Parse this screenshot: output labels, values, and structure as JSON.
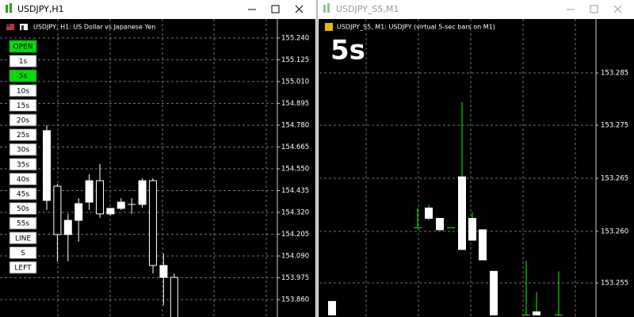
{
  "windows": [
    {
      "title": "USDJPY,H1",
      "info": "USDJPY, H1:  US Dollar vs Japanese Yen",
      "ylim": [
        153.768,
        155.34
      ],
      "price_ticks": [
        {
          "value": 155.24,
          "label": "155.240"
        },
        {
          "value": 155.125,
          "label": "155.125"
        },
        {
          "value": 155.01,
          "label": "155.010"
        },
        {
          "value": 154.895,
          "label": "154.895"
        },
        {
          "value": 154.78,
          "label": "154.780"
        },
        {
          "value": 154.665,
          "label": "154.665"
        },
        {
          "value": 154.55,
          "label": "154.550"
        },
        {
          "value": 154.435,
          "label": "154.435"
        },
        {
          "value": 154.32,
          "label": "154.320"
        },
        {
          "value": 154.205,
          "label": "154.205"
        },
        {
          "value": 154.09,
          "label": "154.090"
        },
        {
          "value": 153.975,
          "label": "153.975"
        },
        {
          "value": 153.86,
          "label": "153.860"
        }
      ],
      "wick_color": "#ffffff",
      "candles": [
        {
          "open": 154.383,
          "high": 154.78,
          "low": 154.333,
          "close": 154.751
        },
        {
          "open": 154.458,
          "high": 154.471,
          "low": 154.061,
          "close": 154.203
        },
        {
          "open": 154.203,
          "high": 154.312,
          "low": 154.061,
          "close": 154.278
        },
        {
          "open": 154.278,
          "high": 154.395,
          "low": 154.165,
          "close": 154.366
        },
        {
          "open": 154.374,
          "high": 154.521,
          "low": 154.333,
          "close": 154.487
        },
        {
          "open": 154.487,
          "high": 154.575,
          "low": 154.291,
          "close": 154.312
        },
        {
          "open": 154.312,
          "high": 154.341,
          "low": 154.303,
          "close": 154.341
        },
        {
          "open": 154.341,
          "high": 154.395,
          "low": 154.333,
          "close": 154.374
        },
        {
          "open": 154.362,
          "high": 154.395,
          "low": 154.312,
          "close": 154.362
        },
        {
          "open": 154.362,
          "high": 154.5,
          "low": 154.345,
          "close": 154.487
        },
        {
          "open": 154.487,
          "high": 154.5,
          "low": 153.998,
          "close": 154.04
        },
        {
          "open": 153.977,
          "high": 154.103,
          "low": 153.831,
          "close": 154.04
        },
        {
          "open": 153.977,
          "high": 153.998,
          "low": 153.74,
          "close": 153.76
        }
      ],
      "buttons": [
        {
          "label": "OPEN",
          "active": true
        },
        {
          "label": "1s",
          "active": false
        },
        {
          "label": "5s",
          "active": true
        },
        {
          "label": "10s",
          "active": false
        },
        {
          "label": "15s",
          "active": false
        },
        {
          "label": "20s",
          "active": false
        },
        {
          "label": "25s",
          "active": false
        },
        {
          "label": "30s",
          "active": false
        },
        {
          "label": "35s",
          "active": false
        },
        {
          "label": "40s",
          "active": false
        },
        {
          "label": "45s",
          "active": false
        },
        {
          "label": "50s",
          "active": false
        },
        {
          "label": "55s",
          "active": false
        },
        {
          "label": "LINE",
          "active": false
        },
        {
          "label": "S",
          "active": false
        },
        {
          "label": "LEFT",
          "active": false
        }
      ]
    },
    {
      "title": "USDJPY_S5,M1",
      "info": "USDJPY_S5, M1:  USDJPY (virtual 5-sec bars on M1)",
      "big_label": "5s",
      "ylim": [
        153.2515,
        153.2802
      ],
      "price_labels": [
        "153.285",
        "153.275",
        "153.265",
        "153.260",
        "153.255"
      ],
      "wick_color": "#00ff00",
      "candles": [
        {
          "open": 153.2517,
          "high": 153.253,
          "low": 153.2517,
          "close": 153.253
        },
        {
          "open": 153.2601,
          "high": 153.262,
          "low": 153.2601,
          "close": 153.2601
        },
        {
          "open": 153.261,
          "high": 153.2623,
          "low": 153.2608,
          "close": 153.262
        },
        {
          "open": 153.2599,
          "high": 153.261,
          "low": 153.2599,
          "close": 153.261
        },
        {
          "open": 153.2601,
          "high": 153.2601,
          "low": 153.2601,
          "close": 153.2601
        },
        {
          "open": 153.258,
          "high": 153.2722,
          "low": 153.258,
          "close": 153.265
        },
        {
          "open": 153.2589,
          "high": 153.2616,
          "low": 153.2589,
          "close": 153.261
        },
        {
          "open": 153.257,
          "high": 153.2599,
          "low": 153.257,
          "close": 153.2599
        },
        {
          "open": 153.2517,
          "high": 153.2559,
          "low": 153.2517,
          "close": 153.2559
        },
        {
          "open": 153.2517,
          "high": 153.2569,
          "low": 153.2517,
          "close": 153.2517
        },
        {
          "open": 153.2517,
          "high": 153.2539,
          "low": 153.2517,
          "close": 153.252
        },
        {
          "open": 153.2517,
          "high": 153.2559,
          "low": 153.2517,
          "close": 153.2517
        }
      ]
    }
  ]
}
